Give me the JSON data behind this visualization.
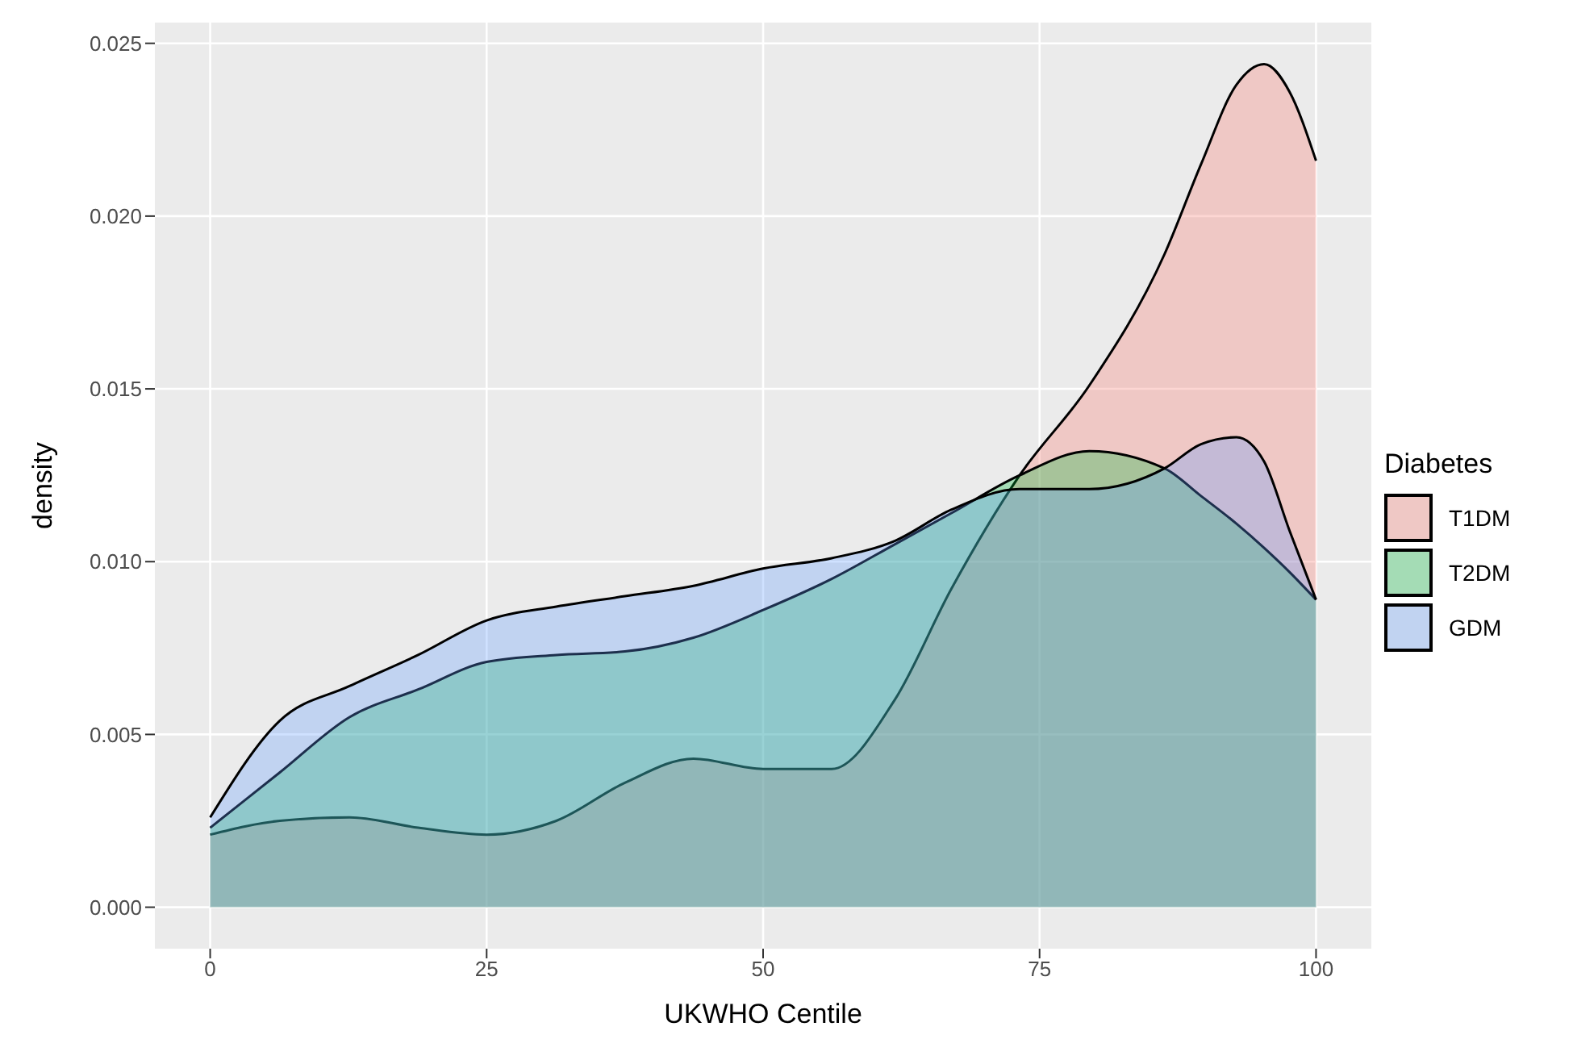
{
  "chart_data": {
    "type": "area",
    "xlabel": "UKWHO  Centile",
    "ylabel": "density",
    "legend_title": "Diabetes",
    "legend": "right",
    "grid": true,
    "x": [
      0,
      6.3,
      12.6,
      18.8,
      25,
      31.3,
      37.5,
      43.7,
      50,
      56.2,
      61.9,
      67,
      73.2,
      79.5,
      86.3,
      89.6,
      92.8,
      95.3,
      97.6,
      100
    ],
    "series": [
      {
        "name": "T1DM",
        "color": "#f8766d",
        "values": [
          0.0021,
          0.0025,
          0.0026,
          0.0023,
          0.0021,
          0.0025,
          0.0036,
          0.0043,
          0.004,
          0.004,
          0.006,
          0.0092,
          0.0125,
          0.0151,
          0.0189,
          0.0215,
          0.0238,
          0.0244,
          0.0236,
          0.0216
        ]
      },
      {
        "name": "T2DM",
        "color": "#00ba38",
        "values": [
          0.0023,
          0.0039,
          0.0055,
          0.0063,
          0.0071,
          0.0073,
          0.0074,
          0.0078,
          0.0086,
          0.0095,
          0.0105,
          0.0114,
          0.0125,
          0.0132,
          0.0127,
          0.0119,
          0.0111,
          0.0104,
          0.0097,
          0.0089
        ]
      },
      {
        "name": "GDM",
        "color": "#619cff",
        "values": [
          0.0026,
          0.0054,
          0.0064,
          0.0073,
          0.0083,
          0.0087,
          0.009,
          0.0093,
          0.0098,
          0.0101,
          0.0106,
          0.0115,
          0.0121,
          0.0121,
          0.0127,
          0.0134,
          0.0136,
          0.0129,
          0.0109,
          0.0089
        ]
      }
    ],
    "xlim": [
      -5,
      105
    ],
    "xticks": [
      0,
      25,
      50,
      75,
      100
    ],
    "ylim": [
      -0.0012,
      0.0256
    ],
    "yticks": [
      {
        "value": 0,
        "label": "0.000"
      },
      {
        "value": 0.005,
        "label": "0.005"
      },
      {
        "value": 0.01,
        "label": "0.010"
      },
      {
        "value": 0.015,
        "label": "0.015"
      },
      {
        "value": 0.02,
        "label": "0.020"
      },
      {
        "value": 0.025,
        "label": "0.025"
      }
    ]
  }
}
